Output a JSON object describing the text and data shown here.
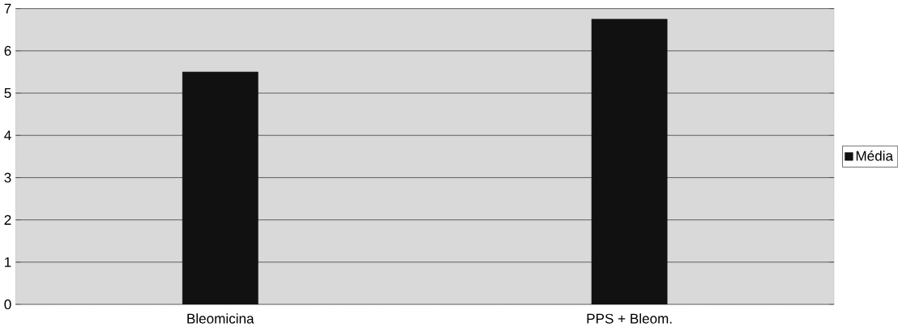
{
  "chart_data": {
    "type": "bar",
    "categories": [
      "Bleomicina",
      "PPS + Bleom."
    ],
    "series": [
      {
        "name": "Média",
        "color": "#111111",
        "values": [
          5.5,
          6.75
        ]
      }
    ],
    "ylim": [
      0,
      7
    ],
    "yticks": [
      0,
      1,
      2,
      3,
      4,
      5,
      6,
      7
    ],
    "grid": "y",
    "legend": "right"
  }
}
